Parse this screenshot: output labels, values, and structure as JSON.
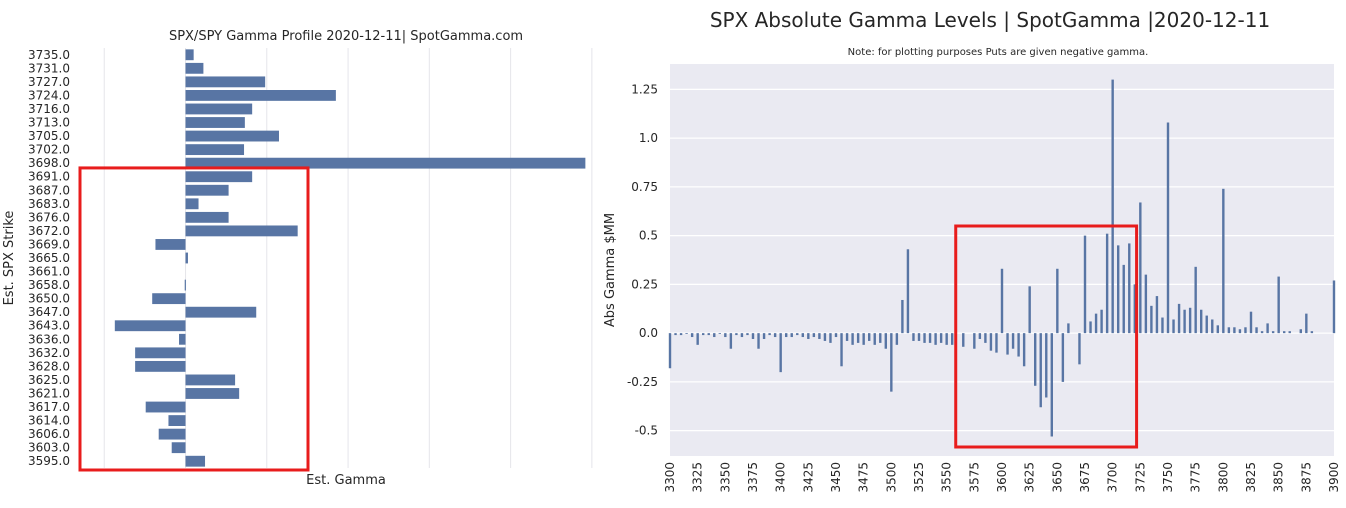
{
  "chart_data": [
    {
      "type": "bar",
      "orientation": "horizontal",
      "title": "SPX/SPY Gamma Profile 2020-12-11| SpotGamma.com",
      "xlabel": "Est. Gamma",
      "ylabel": "Est. SPX Strike",
      "categories": [
        "3735.0",
        "3731.0",
        "3727.0",
        "3724.0",
        "3716.0",
        "3713.0",
        "3705.0",
        "3702.0",
        "3698.0",
        "3691.0",
        "3687.0",
        "3683.0",
        "3676.0",
        "3672.0",
        "3669.0",
        "3665.0",
        "3661.0",
        "3658.0",
        "3650.0",
        "3647.0",
        "3643.0",
        "3636.0",
        "3632.0",
        "3628.0",
        "3625.0",
        "3621.0",
        "3617.0",
        "3614.0",
        "3606.0",
        "3603.0",
        "3595.0"
      ],
      "values": [
        0.1,
        0.22,
        0.98,
        1.85,
        0.82,
        0.73,
        1.15,
        0.72,
        4.92,
        0.82,
        0.53,
        0.16,
        0.53,
        1.38,
        -0.37,
        0.03,
        0,
        -0.01,
        -0.41,
        0.87,
        -0.87,
        -0.08,
        -0.62,
        -0.62,
        0.61,
        0.66,
        -0.49,
        -0.21,
        -0.33,
        -0.17,
        0.24
      ],
      "xlim": [
        -1.2,
        5.1
      ],
      "grid": true,
      "highlight": {
        "from": "3691.0",
        "to": "3595.0",
        "color": "#e81c1c"
      }
    },
    {
      "type": "bar",
      "title": "SPX Absolute Gamma Levels | SpotGamma |2020-12-11",
      "subtitle": "Note: for plotting purposes Puts are given negative gamma.",
      "xlabel": "",
      "ylabel": "Abs Gamma $MM",
      "x_ticks": [
        "3300",
        "3325",
        "3350",
        "3375",
        "3400",
        "3425",
        "3450",
        "3475",
        "3500",
        "3525",
        "3550",
        "3575",
        "3600",
        "3625",
        "3650",
        "3675",
        "3700",
        "3725",
        "3750",
        "3775",
        "3800",
        "3825",
        "3850",
        "3875",
        "3900"
      ],
      "y_ticks": [
        "-0.5",
        "-0.25",
        "0.0",
        "0.25",
        "0.5",
        "0.75",
        "1.0",
        "1.25"
      ],
      "xlim": [
        3300,
        3900
      ],
      "ylim": [
        -0.63,
        1.38
      ],
      "grid": true,
      "x": [
        3300,
        3305,
        3310,
        3315,
        3320,
        3325,
        3330,
        3335,
        3340,
        3345,
        3350,
        3355,
        3360,
        3365,
        3370,
        3375,
        3380,
        3385,
        3390,
        3395,
        3400,
        3405,
        3410,
        3415,
        3420,
        3425,
        3430,
        3435,
        3440,
        3445,
        3450,
        3455,
        3460,
        3465,
        3470,
        3475,
        3480,
        3485,
        3490,
        3495,
        3500,
        3505,
        3510,
        3515,
        3520,
        3525,
        3530,
        3535,
        3540,
        3545,
        3550,
        3555,
        3565,
        3575,
        3580,
        3585,
        3590,
        3595,
        3600,
        3605,
        3610,
        3615,
        3620,
        3625,
        3630,
        3635,
        3640,
        3645,
        3650,
        3655,
        3660,
        3670,
        3675,
        3680,
        3685,
        3690,
        3695,
        3700,
        3705,
        3710,
        3715,
        3720,
        3725,
        3730,
        3735,
        3740,
        3745,
        3750,
        3755,
        3760,
        3765,
        3770,
        3775,
        3780,
        3785,
        3790,
        3795,
        3800,
        3805,
        3810,
        3815,
        3820,
        3825,
        3830,
        3835,
        3840,
        3845,
        3850,
        3855,
        3860,
        3870,
        3875,
        3880,
        3900
      ],
      "values": [
        -0.18,
        -0.01,
        -0.01,
        0.0,
        -0.02,
        -0.06,
        -0.01,
        -0.01,
        -0.02,
        0.0,
        -0.02,
        -0.08,
        -0.01,
        -0.02,
        -0.01,
        -0.03,
        -0.08,
        -0.03,
        -0.01,
        -0.02,
        -0.2,
        -0.02,
        -0.02,
        -0.01,
        -0.02,
        -0.03,
        -0.02,
        -0.03,
        -0.04,
        -0.05,
        -0.02,
        -0.17,
        -0.04,
        -0.06,
        -0.05,
        -0.06,
        -0.04,
        -0.06,
        -0.05,
        -0.08,
        -0.3,
        -0.06,
        0.17,
        0.43,
        -0.04,
        -0.04,
        -0.05,
        -0.05,
        -0.06,
        -0.05,
        -0.06,
        -0.06,
        -0.07,
        -0.08,
        -0.03,
        -0.05,
        -0.09,
        -0.1,
        0.33,
        -0.11,
        -0.08,
        -0.12,
        -0.17,
        0.24,
        -0.27,
        -0.38,
        -0.33,
        -0.53,
        0.33,
        -0.25,
        0.05,
        -0.16,
        0.5,
        0.06,
        0.1,
        0.12,
        0.51,
        1.3,
        0.45,
        0.35,
        0.46,
        0.25,
        0.67,
        0.3,
        0.14,
        0.19,
        0.08,
        1.08,
        0.07,
        0.15,
        0.12,
        0.13,
        0.34,
        0.12,
        0.09,
        0.07,
        0.04,
        0.74,
        0.03,
        0.03,
        0.02,
        0.03,
        0.11,
        0.03,
        0.01,
        0.05,
        0.01,
        0.29,
        0.01,
        0.01,
        0.02,
        0.1,
        0.01,
        0.27
      ],
      "highlight": {
        "from": 3560,
        "to": 3718,
        "color": "#e81c1c"
      }
    }
  ]
}
